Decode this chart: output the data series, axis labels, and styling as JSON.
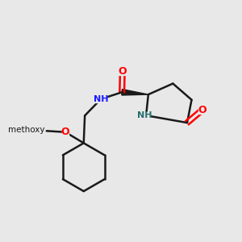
{
  "background_color": "#e8e8e8",
  "bond_color": "#1a1a1a",
  "N_color": "#1a1aff",
  "O_color": "#ff0000",
  "NH_color": "#2a6e6e",
  "figsize": [
    3.0,
    3.0
  ],
  "dpi": 100,
  "xlim": [
    0,
    10
  ],
  "ylim": [
    0,
    10
  ]
}
